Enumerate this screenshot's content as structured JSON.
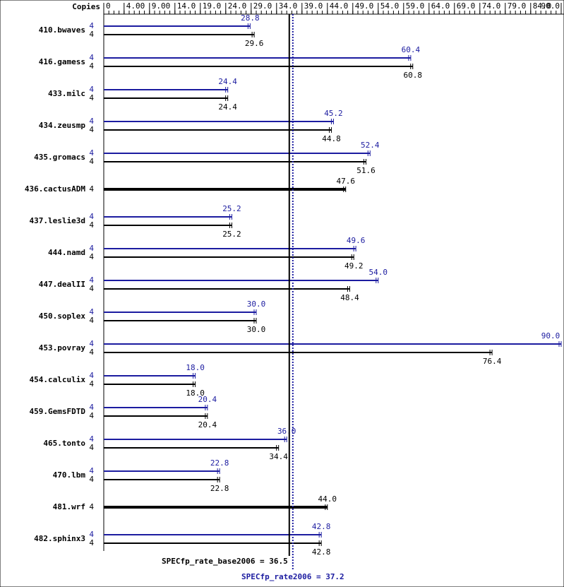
{
  "chart_data": {
    "type": "bar",
    "orientation": "horizontal",
    "axis_label": "Copies",
    "categories": [
      "410.bwaves",
      "416.gamess",
      "433.milc",
      "434.zeusmp",
      "435.gromacs",
      "436.cactusADM",
      "437.leslie3d",
      "444.namd",
      "447.dealII",
      "450.soplex",
      "453.povray",
      "454.calculix",
      "459.GemsFDTD",
      "465.tonto",
      "470.lbm",
      "481.wrf",
      "482.sphinx3"
    ],
    "series": [
      {
        "color": "#1c1ca0",
        "values": [
          28.8,
          60.4,
          24.4,
          45.2,
          52.4,
          null,
          25.2,
          49.6,
          54,
          30,
          90,
          18,
          20.4,
          36,
          22.8,
          null,
          42.8
        ],
        "value_labels": [
          "28.8",
          "60.4",
          "24.4",
          "45.2",
          "52.4",
          null,
          "25.2",
          "49.6",
          "54.0",
          "30.0",
          "90.0",
          "18.0",
          "20.4",
          "36.0",
          "22.8",
          null,
          "42.8"
        ],
        "copies": [
          4,
          4,
          4,
          4,
          4,
          null,
          4,
          4,
          4,
          4,
          4,
          4,
          4,
          4,
          4,
          null,
          4
        ]
      },
      {
        "color": "#000000",
        "values": [
          29.6,
          60.8,
          24.4,
          44.8,
          51.6,
          47.6,
          25.2,
          49.2,
          48.4,
          30,
          76.4,
          18,
          20.4,
          34.4,
          22.8,
          44,
          42.8
        ],
        "value_labels": [
          "29.6",
          "60.8",
          "24.4",
          "44.8",
          "51.6",
          "47.6",
          "25.2",
          "49.2",
          "48.4",
          "30.0",
          "76.4",
          "18.0",
          "20.4",
          "34.4",
          "22.8",
          "44.0",
          "42.8"
        ],
        "copies": [
          4,
          4,
          4,
          4,
          4,
          4,
          4,
          4,
          4,
          4,
          4,
          4,
          4,
          4,
          4,
          4,
          4
        ]
      }
    ],
    "xlim": [
      0,
      90
    ],
    "xticks": [
      0,
      {
        "value": 4,
        "label": "4.00"
      },
      {
        "value": 9,
        "label": "9.00"
      },
      {
        "value": 14,
        "label": "14.0"
      },
      {
        "value": 19,
        "label": "19.0"
      },
      {
        "value": 24,
        "label": "24.0"
      },
      {
        "value": 29,
        "label": "29.0"
      },
      {
        "value": 34,
        "label": "34.0"
      },
      {
        "value": 39,
        "label": "39.0"
      },
      {
        "value": 44,
        "label": "44.0"
      },
      {
        "value": 49,
        "label": "49.0"
      },
      {
        "value": 54,
        "label": "54.0"
      },
      {
        "value": 59,
        "label": "59.0"
      },
      {
        "value": 64,
        "label": "64.0"
      },
      {
        "value": 69,
        "label": "69.0"
      },
      {
        "value": 74,
        "label": "74.0"
      },
      {
        "value": 79,
        "label": "79.0"
      },
      {
        "value": 84,
        "label": "84.0"
      },
      {
        "value": 90,
        "label": "90.0"
      }
    ],
    "reference_lines": [
      {
        "value": 36.5,
        "label": "SPECfp_rate_base2006 = 36.5",
        "color": "#000000",
        "style": "solid"
      },
      {
        "value": 37.2,
        "label": "SPECfp_rate2006 = 37.2",
        "color": "#1c1ca0",
        "style": "dotted"
      }
    ]
  }
}
